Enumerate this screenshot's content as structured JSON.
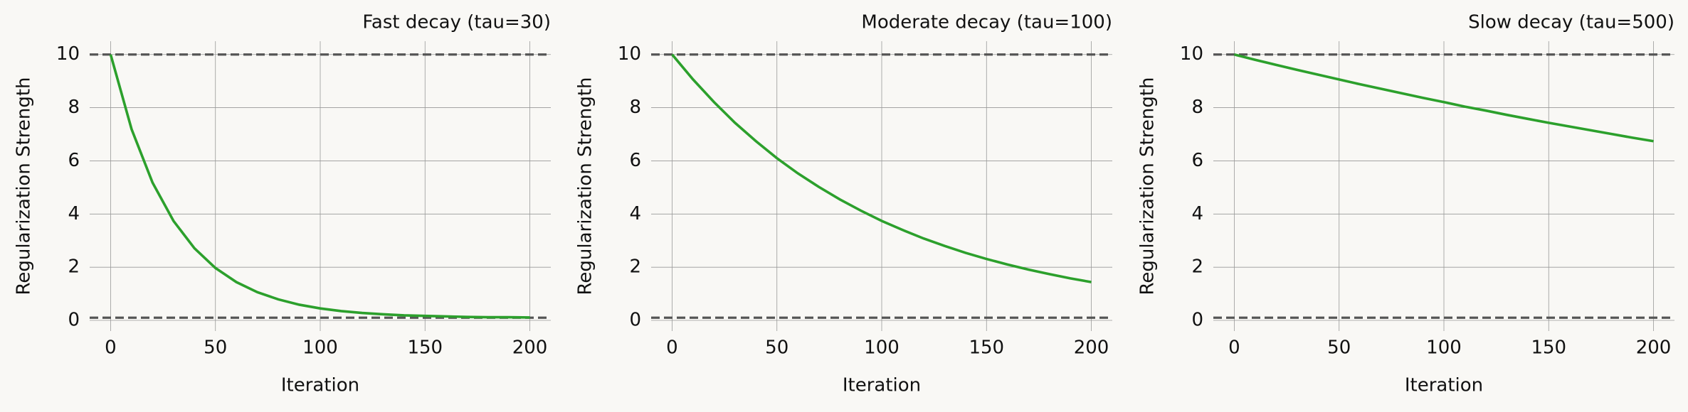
{
  "chart_data": [
    {
      "type": "line",
      "title": "Fast decay (tau=30)",
      "xlabel": "Iteration",
      "ylabel": "Regularization Strength",
      "x": [
        0,
        10,
        20,
        30,
        40,
        50,
        60,
        70,
        80,
        90,
        100,
        110,
        120,
        130,
        140,
        150,
        160,
        170,
        180,
        190,
        200
      ],
      "values": [
        10.0,
        7.19,
        5.18,
        3.74,
        2.71,
        1.97,
        1.44,
        1.06,
        0.79,
        0.59,
        0.45,
        0.35,
        0.28,
        0.23,
        0.19,
        0.17,
        0.15,
        0.13,
        0.12,
        0.12,
        0.11
      ],
      "color": "#2ca02c",
      "hlines": [
        10,
        0.1
      ],
      "hline_color": "#555555",
      "xlim": [
        -10,
        210
      ],
      "ylim": [
        -0.4,
        10.5
      ],
      "xticks": [
        0,
        50,
        100,
        150,
        200
      ],
      "yticks": [
        0,
        2,
        4,
        6,
        8,
        10
      ],
      "grid": true
    },
    {
      "type": "line",
      "title": "Moderate decay (tau=100)",
      "xlabel": "Iteration",
      "ylabel": "Regularization Strength",
      "x": [
        0,
        10,
        20,
        30,
        40,
        50,
        60,
        70,
        80,
        90,
        100,
        110,
        120,
        130,
        140,
        150,
        160,
        170,
        180,
        190,
        200
      ],
      "values": [
        10.0,
        9.06,
        8.21,
        7.43,
        6.74,
        6.1,
        5.53,
        5.02,
        4.55,
        4.13,
        3.74,
        3.4,
        3.08,
        2.8,
        2.54,
        2.31,
        2.1,
        1.91,
        1.74,
        1.58,
        1.44
      ],
      "color": "#2ca02c",
      "hlines": [
        10,
        0.1
      ],
      "hline_color": "#555555",
      "xlim": [
        -10,
        210
      ],
      "ylim": [
        -0.4,
        10.5
      ],
      "xticks": [
        0,
        50,
        100,
        150,
        200
      ],
      "yticks": [
        0,
        2,
        4,
        6,
        8,
        10
      ],
      "grid": true
    },
    {
      "type": "line",
      "title": "Slow decay (tau=500)",
      "xlabel": "Iteration",
      "ylabel": "Regularization Strength",
      "x": [
        0,
        10,
        20,
        30,
        40,
        50,
        60,
        70,
        80,
        90,
        100,
        110,
        120,
        130,
        140,
        150,
        160,
        170,
        180,
        190,
        200
      ],
      "values": [
        10.0,
        9.8,
        9.61,
        9.42,
        9.24,
        9.06,
        8.88,
        8.71,
        8.54,
        8.37,
        8.21,
        8.04,
        7.89,
        7.73,
        7.58,
        7.43,
        7.29,
        7.15,
        7.01,
        6.87,
        6.74
      ],
      "color": "#2ca02c",
      "hlines": [
        10,
        0.1
      ],
      "hline_color": "#555555",
      "xlim": [
        -10,
        210
      ],
      "ylim": [
        -0.4,
        10.5
      ],
      "xticks": [
        0,
        50,
        100,
        150,
        200
      ],
      "yticks": [
        0,
        2,
        4,
        6,
        8,
        10
      ],
      "grid": true
    }
  ]
}
